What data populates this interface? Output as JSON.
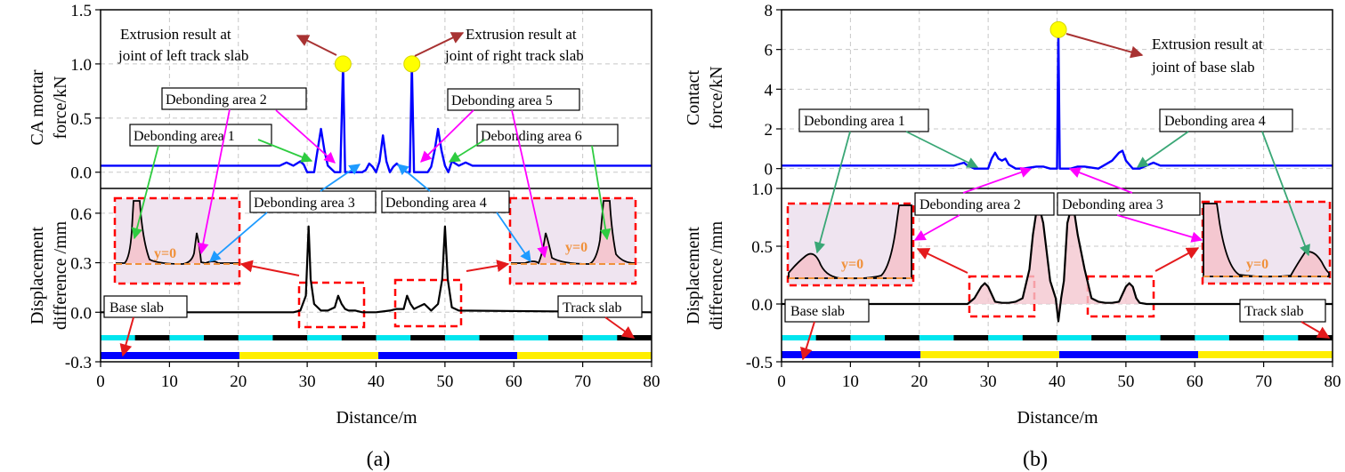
{
  "chart_data": [
    {
      "type": "line",
      "panel_label": "(a)",
      "xlabel": "Distance/m",
      "x_ticks": [
        "0",
        "10",
        "20",
        "30",
        "40",
        "50",
        "60",
        "70",
        "80"
      ],
      "xlim": [
        0,
        80
      ],
      "top": {
        "ylabel": [
          "CA mortar",
          "force/kN"
        ],
        "ylim": [
          -0.15,
          1.5
        ],
        "y_ticks": [
          "0.0",
          "0.5",
          "1.0",
          "1.5"
        ],
        "series": [
          {
            "color": "#0000ff",
            "x": [
              0,
              26,
              27,
              28,
              29,
              29.5,
              30,
              31,
              31.5,
              32,
              32.5,
              33,
              34,
              34.8,
              35.2,
              35.5,
              35.8,
              36.2,
              37,
              38,
              38.5,
              39,
              39.5,
              40,
              40.5,
              41,
              41.5,
              42,
              42.5,
              43,
              44,
              44.5,
              44.9,
              45.2,
              45.5,
              45.8,
              46.5,
              47.5,
              48,
              48.5,
              49,
              49.5,
              50,
              50.5,
              51,
              52,
              53,
              54,
              55,
              80
            ],
            "y": [
              0.06,
              0.06,
              0.09,
              0.06,
              0.1,
              0.07,
              0.0,
              0.0,
              0.2,
              0.4,
              0.2,
              0.06,
              0.0,
              0.0,
              1.0,
              0.0,
              0.0,
              0.0,
              0.0,
              0.0,
              0.02,
              0.08,
              0.05,
              0.0,
              0.1,
              0.34,
              0.1,
              0.0,
              0.05,
              0.08,
              0.02,
              0.0,
              0.0,
              1.0,
              0.0,
              0.0,
              0.0,
              0.0,
              0.05,
              0.2,
              0.4,
              0.2,
              0.06,
              0.0,
              0.1,
              0.06,
              0.09,
              0.06,
              0.06,
              0.06
            ]
          }
        ],
        "markers": [
          {
            "x": 35.2,
            "y": 1.0
          },
          {
            "x": 45.2,
            "y": 1.0
          }
        ],
        "annotations": [
          "Extrusion result at",
          "joint  of  left track slab",
          "Extrusion result at",
          "joint of  right track slab"
        ]
      },
      "bottom": {
        "ylabel": [
          "Displacement",
          "difference /mm"
        ],
        "ylim": [
          -0.3,
          0.75
        ],
        "y_ticks": [
          "-0.3",
          "0.0",
          "0.3",
          "0.6"
        ],
        "series": [
          {
            "color": "#000000",
            "x": [
              0,
              28,
              29,
              29.8,
              30.2,
              30.5,
              31,
              32,
              33,
              34,
              34.5,
              35,
              35.5,
              36,
              37,
              38,
              40,
              42,
              43,
              44,
              44.5,
              45,
              45.5,
              46,
              47,
              48,
              49,
              49.6,
              50,
              50.4,
              51,
              52,
              80
            ],
            "y": [
              0,
              0,
              0.01,
              0.1,
              0.52,
              0.2,
              0.05,
              0.01,
              0.01,
              0.03,
              0.1,
              0.05,
              0.02,
              0.01,
              0.01,
              0.0,
              0.0,
              0.01,
              0.02,
              0.02,
              0.1,
              0.05,
              0.02,
              0.03,
              0.05,
              0.01,
              0.05,
              0.2,
              0.52,
              0.2,
              0.03,
              0.01,
              0
            ]
          }
        ],
        "y0_label": "y=0",
        "box_labels": [
          "Debonding  area 1",
          "Debonding  area 2",
          "Debonding  area 3",
          "Debonding  area 4",
          "Debonding  area 5",
          "Debonding  area 6"
        ],
        "slab_labels": [
          "Base slab",
          "Track slab"
        ]
      }
    },
    {
      "type": "line",
      "panel_label": "(b)",
      "xlabel": "Distance/m",
      "x_ticks": [
        "0",
        "10",
        "20",
        "30",
        "40",
        "50",
        "60",
        "70",
        "80"
      ],
      "xlim": [
        0,
        80
      ],
      "top": {
        "ylabel": [
          "Contact",
          "force/kN"
        ],
        "ylim": [
          -1.0,
          8
        ],
        "y_ticks": [
          "0",
          "2",
          "4",
          "6",
          "8"
        ],
        "series": [
          {
            "color": "#0000ff",
            "x": [
              0,
              25,
              26,
              26.5,
              27,
              28,
              30,
              30.5,
              31,
              31.5,
              32,
              32.5,
              33,
              34,
              35,
              36,
              37,
              38,
              39,
              40,
              40.2,
              40.4,
              41,
              42,
              43,
              44,
              45,
              46,
              47,
              48,
              49,
              49.5,
              50,
              51,
              52,
              53,
              54,
              55,
              80
            ],
            "y": [
              0.15,
              0.15,
              0.25,
              0.3,
              0.15,
              0.0,
              0.0,
              0.5,
              0.8,
              0.5,
              0.4,
              0.5,
              0.2,
              0.0,
              0.0,
              0.05,
              0.1,
              0.1,
              0.0,
              0.0,
              7.0,
              0.0,
              0.0,
              0.0,
              0.1,
              0.1,
              0.05,
              0.0,
              0.2,
              0.4,
              0.8,
              0.9,
              0.4,
              0.0,
              0.0,
              0.15,
              0.3,
              0.15,
              0.15
            ]
          }
        ],
        "markers": [
          {
            "x": 40.2,
            "y": 7.0
          }
        ],
        "annotations": [
          "Extrusion result at",
          "joint of  base slab"
        ]
      },
      "bottom": {
        "ylabel": [
          "Displacement",
          "difference /mm"
        ],
        "ylim": [
          -0.5,
          1.0
        ],
        "y_ticks": [
          "-0.5",
          "0.0",
          "0.5",
          "1.0"
        ],
        "series": [
          {
            "color": "#000000",
            "x": [
              0,
              27,
              28,
              29,
              29.5,
              30,
              31,
              32,
              33,
              34,
              35,
              36,
              36.5,
              37,
              37.5,
              38,
              39,
              39.8,
              40.2,
              40.6,
              41,
              41.5,
              42,
              42.5,
              43,
              44,
              45,
              46,
              47,
              48,
              49,
              50,
              50.5,
              51,
              51.5,
              52,
              53,
              80
            ],
            "y": [
              0,
              0,
              0.05,
              0.15,
              0.18,
              0.15,
              0.02,
              0.01,
              0.01,
              0.02,
              0.05,
              0.3,
              0.6,
              0.8,
              0.82,
              0.7,
              0.2,
              0.05,
              -0.15,
              0.05,
              0.2,
              0.7,
              0.82,
              0.8,
              0.6,
              0.3,
              0.05,
              0.02,
              0.01,
              0.01,
              0.02,
              0.15,
              0.18,
              0.15,
              0.05,
              0.01,
              0,
              0
            ]
          }
        ],
        "y0_label": "y=0",
        "box_labels": [
          "Debonding area 1",
          "Debonding area 2",
          "Debonding area 3",
          "Debonding area 4"
        ],
        "slab_labels": [
          "Base slab",
          "Track slab"
        ]
      }
    }
  ]
}
